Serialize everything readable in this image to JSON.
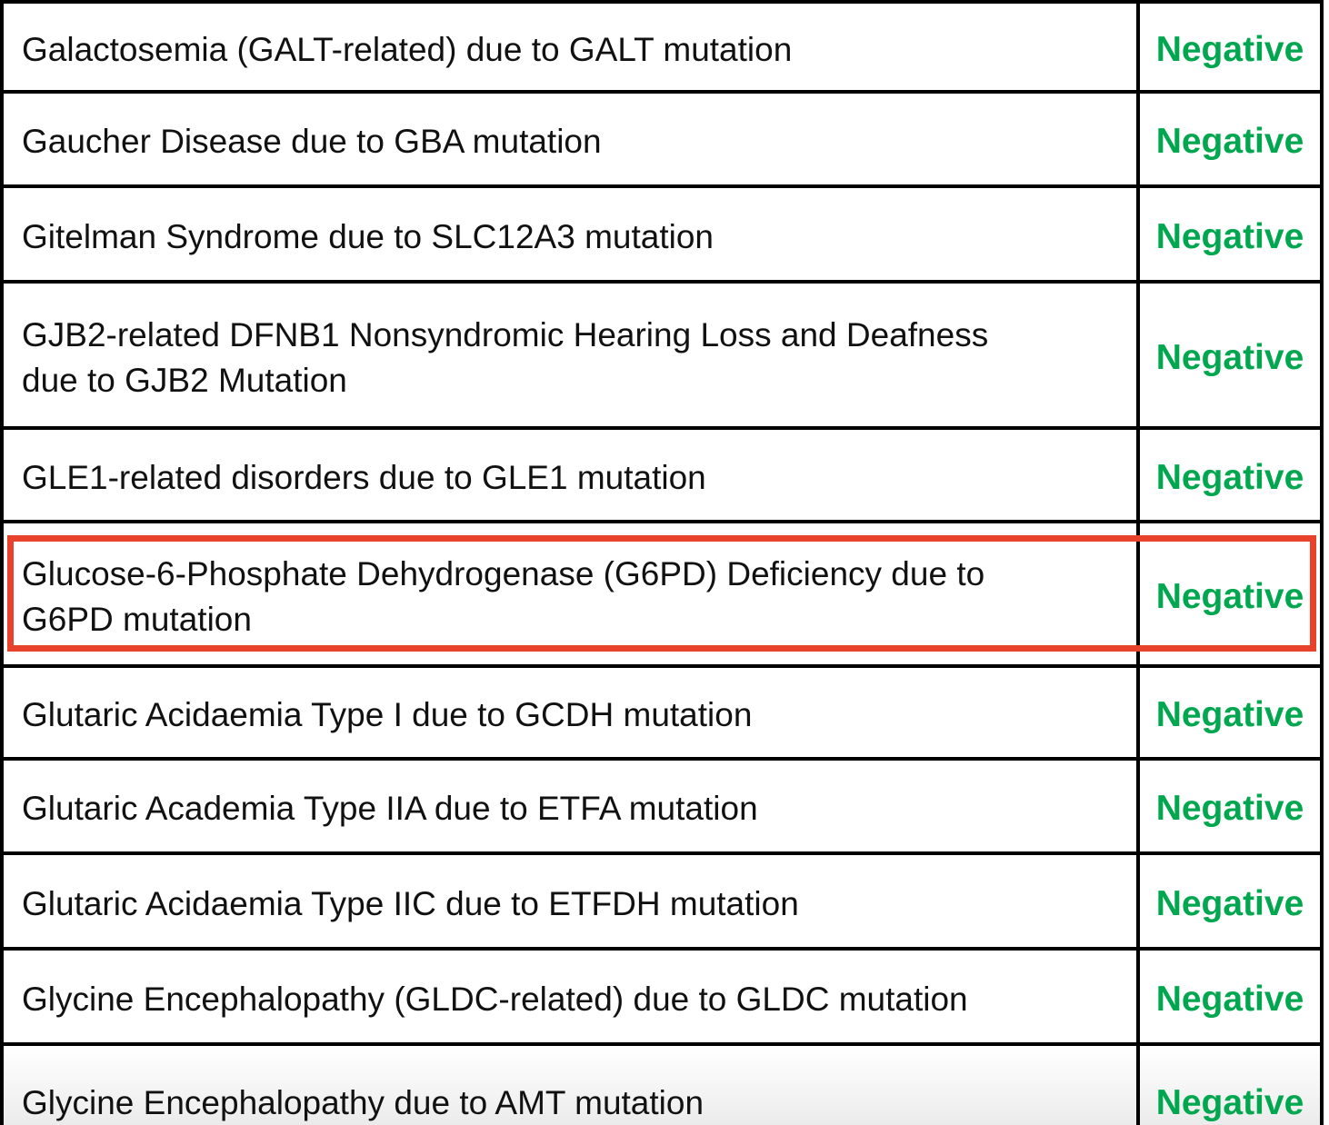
{
  "table": {
    "description": "Genetic carrier screening results table",
    "columns": [
      {
        "name": "condition"
      },
      {
        "name": "result"
      }
    ],
    "rows": [
      {
        "condition": "Galactosemia (GALT-related) due to GALT mutation",
        "result": "Negative",
        "highlighted": false
      },
      {
        "condition": "Gaucher Disease due to GBA mutation",
        "result": "Negative",
        "highlighted": false
      },
      {
        "condition": "Gitelman Syndrome due to SLC12A3 mutation",
        "result": "Negative",
        "highlighted": false
      },
      {
        "condition": "GJB2-related DFNB1 Nonsyndromic Hearing Loss and Deafness\ndue to GJB2 Mutation",
        "result": "Negative",
        "highlighted": false
      },
      {
        "condition": "GLE1-related disorders due to GLE1 mutation",
        "result": "Negative",
        "highlighted": false
      },
      {
        "condition": "Glucose-6-Phosphate Dehydrogenase (G6PD) Deficiency due to\nG6PD mutation",
        "result": "Negative",
        "highlighted": true
      },
      {
        "condition": "Glutaric Acidaemia Type I due to GCDH mutation",
        "result": "Negative",
        "highlighted": false
      },
      {
        "condition": "Glutaric Academia Type IIA due to ETFA mutation",
        "result": "Negative",
        "highlighted": false
      },
      {
        "condition": "Glutaric Acidaemia Type IIC due to ETFDH mutation",
        "result": "Negative",
        "highlighted": false
      },
      {
        "condition": "Glycine Encephalopathy (GLDC-related) due to GLDC mutation",
        "result": "Negative",
        "highlighted": false
      },
      {
        "condition": "Glycine Encephalopathy due to AMT mutation",
        "result": "Negative",
        "highlighted": false
      }
    ]
  },
  "highlight": {
    "row_index": 5,
    "style": "red-outline-box"
  },
  "colors": {
    "negative_result": "#00A74F",
    "highlight_box": "#E8412C",
    "table_border": "#000000",
    "text": "#111111"
  }
}
